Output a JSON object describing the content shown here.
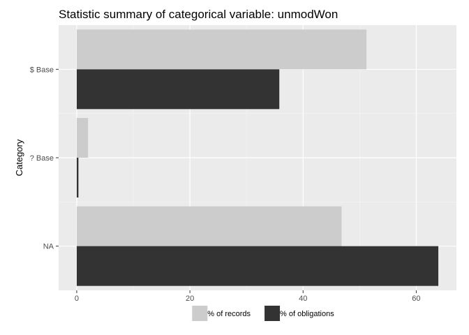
{
  "chart_data": {
    "type": "bar",
    "orientation": "horizontal",
    "title": "Statistic summary of categorical variable:  unmodWon",
    "xlabel": "",
    "ylabel": "Category",
    "categories": [
      "$ Base",
      "? Base",
      "NA"
    ],
    "series": [
      {
        "name": "% of records",
        "values": [
          51.2,
          2.0,
          46.8
        ],
        "color": "#cccccc"
      },
      {
        "name": "% of obligations",
        "values": [
          35.8,
          0.3,
          63.9
        ],
        "color": "#333333"
      }
    ],
    "xlim": [
      -3.2,
      67.1
    ],
    "xticks": [
      0,
      20,
      40,
      60
    ],
    "grid": true,
    "panel_background": "#ebebeb",
    "legend_position": "bottom"
  }
}
